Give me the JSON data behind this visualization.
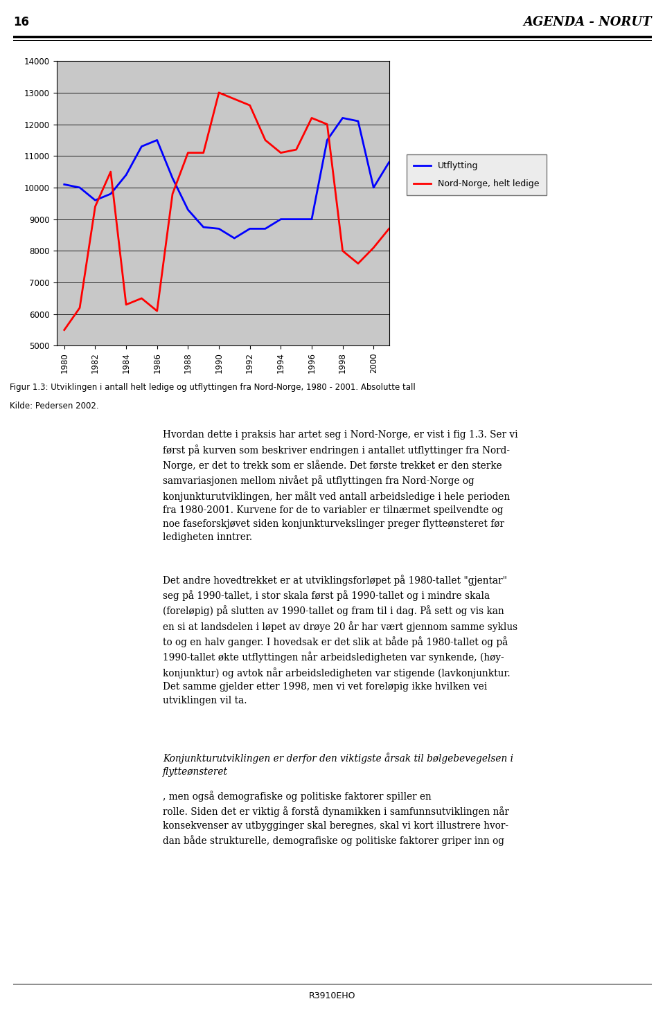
{
  "years": [
    1980,
    1981,
    1982,
    1983,
    1984,
    1985,
    1986,
    1987,
    1988,
    1989,
    1990,
    1991,
    1992,
    1993,
    1994,
    1995,
    1996,
    1997,
    1998,
    1999,
    2000,
    2001
  ],
  "utflytting": [
    10100,
    10000,
    9600,
    9800,
    10400,
    11300,
    11500,
    10300,
    9300,
    8750,
    8700,
    8400,
    8700,
    8700,
    9000,
    9000,
    9000,
    11500,
    12200,
    12100,
    10000,
    10800
  ],
  "ledige": [
    5500,
    6200,
    9400,
    10500,
    6300,
    6500,
    6100,
    9800,
    11100,
    11100,
    13000,
    12800,
    12600,
    11500,
    11100,
    11200,
    12200,
    12000,
    8000,
    7600,
    8100,
    8700
  ],
  "utflytting_color": "#0000FF",
  "ledige_color": "#FF0000",
  "background_color": "#C8C8C8",
  "ylim": [
    5000,
    14000
  ],
  "yticks": [
    5000,
    6000,
    7000,
    8000,
    9000,
    10000,
    11000,
    12000,
    13000,
    14000
  ],
  "legend_utflytting": "Utflytting",
  "legend_ledige": "Nord-Norge, helt ledige",
  "page_number": "16",
  "header_title": "AGENDA - NORUT",
  "figure_caption": "Figur 1.3: Utviklingen i antall helt ledige og utflyttingen fra Nord-Norge, 1980 - 2001. Absolutte tall",
  "caption_source": "Kilde: Pedersen 2002.",
  "footer": "R3910EHO",
  "para1": "Hvordan dette i praksis har artet seg i Nord-Norge, er vist i fig 1.3. Ser vi først på kurven som beskriver endringen i antallet utflyttinger fra Nord-Norge, er det to trekk som er slående. Det første trekket er den sterke samvariasjonen mellom nivået på utflyttingen fra Nord-Norge og konjunkturutviklingen, her målt ved antall arbeidsledige i hele perioden fra 1980-2001. Kurvene for de to variabler er tilnærmet speilvendte og noe faseforskjøvet siden konjunkturvekslinger preger flytteønsteret før ledigheten inntrer.",
  "para2": "Det andre hovedtrekket er at utviklingsforløpet på 1980-tallet \"gjentar\" seg på 1990-tallet, i stor skala først på 1990-tallet og i mindre skala (foreløpig) på slutten av 1990-tallet og fram til i dag. På sett og vis kan en si at landsdelen i løpet av drøye 20 år har vært gjennom samme syklus to og en halv ganger. I hovedsak er det slik at både på 1980-tallet og på 1990-tallet økte utflyttingen når arbeidsledigheten var synkende, (høy-konjunktur) og avtok når arbeidsledigheten var stigende (lavkonjunktur. Det samme gjelder etter 1998, men vi vet foreløpig ikke hvilken vei utviklingen vil ta.",
  "para3_italic_start": "Konjunkturutviklingen er derfor den viktigste årsak til bølgebevegelsen i flytteønsteret",
  "para3_rest": ", men også demografiske og politiske faktorer spiller en rolle. Siden det er viktig å forstå dynamikken i samfunnsutviklingen når konsekvenser av utbygginger skal beregnes, skal vi kort illustrere hvor-dan både strukturelle, demografiske og politiske faktorer griper inn og"
}
